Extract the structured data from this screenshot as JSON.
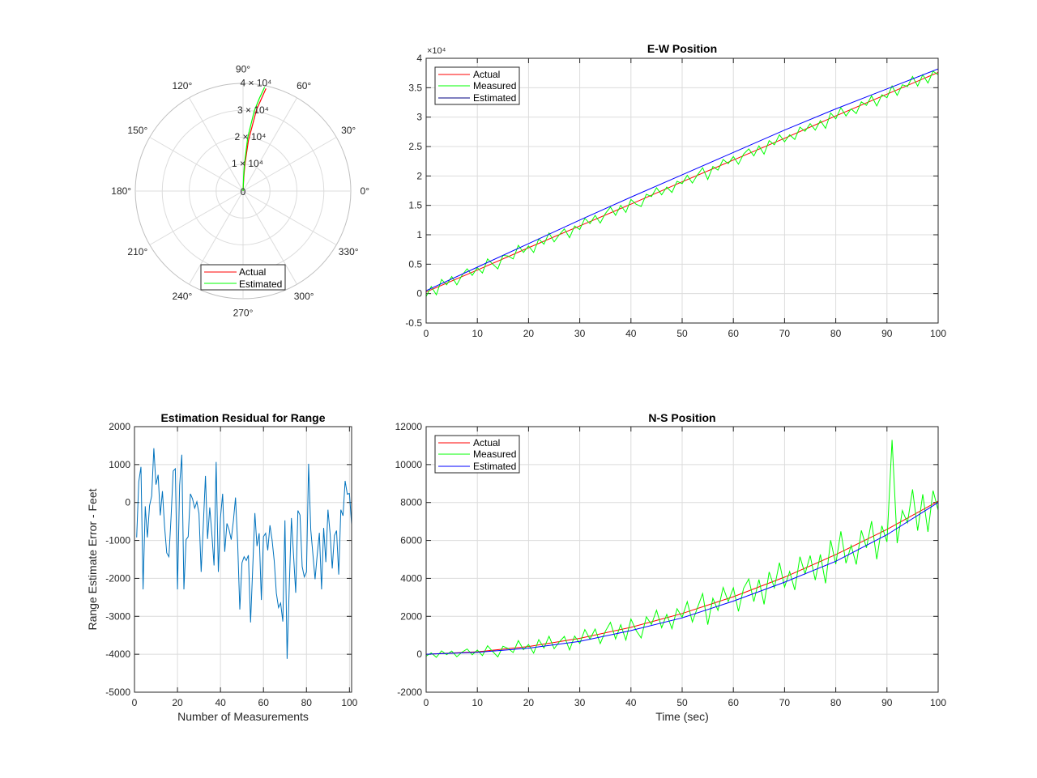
{
  "colors": {
    "actual": "#ff0000",
    "measured": "#00ff00",
    "estimated": "#0000ff",
    "estimated_legend_ew": "#000080",
    "residual": "#0072bd",
    "grid": "#dcdcdc",
    "axis": "#262626"
  },
  "chart_data": [
    {
      "type": "line",
      "subtype": "polar",
      "theta_ticks_deg": [
        0,
        30,
        60,
        90,
        120,
        150,
        180,
        210,
        240,
        270,
        300,
        330
      ],
      "theta_tick_labels": [
        "0°",
        "30°",
        "60°",
        "90°",
        "120°",
        "150°",
        "180°",
        "210°",
        "240°",
        "270°",
        "300°",
        "330°"
      ],
      "r_ticks": [
        0,
        10000,
        20000,
        30000,
        40000
      ],
      "r_tick_labels": [
        "0",
        "1 × 10⁴",
        "2 × 10⁴",
        "3 × 10⁴",
        "4 × 10⁴"
      ],
      "rlim": [
        0,
        40000
      ],
      "grid": true,
      "legend": {
        "placement": "bottom",
        "entries": [
          "Actual",
          "Estimated"
        ]
      },
      "series": [
        {
          "name": "Actual",
          "color": "#ff0000",
          "theta_deg": [
            90,
            87,
            86,
            83.9,
            80.6,
            77.4
          ],
          "r": [
            0,
            5000,
            10000,
            19000,
            30700,
            39000
          ]
        },
        {
          "name": "Estimated",
          "color": "#00ff00",
          "theta_deg": [
            90,
            88,
            87,
            85,
            82,
            80,
            78.3
          ],
          "r": [
            0,
            5000,
            10000,
            20000,
            30100,
            35000,
            39400
          ]
        }
      ]
    },
    {
      "type": "line",
      "title": "E-W Position",
      "xlabel": "",
      "ylabel": "",
      "y_exponent_label": "×10⁴",
      "xlim": [
        0,
        100
      ],
      "ylim": [
        -0.5,
        4
      ],
      "xticks": [
        0,
        10,
        20,
        30,
        40,
        50,
        60,
        70,
        80,
        90,
        100
      ],
      "yticks": [
        -0.5,
        0,
        0.5,
        1,
        1.5,
        2,
        2.5,
        3,
        3.5,
        4
      ],
      "grid": true,
      "legend": {
        "placement": "top-left",
        "entries": [
          "Actual",
          "Measured",
          "Estimated"
        ]
      },
      "series": [
        {
          "name": "Actual",
          "color": "#ff0000",
          "x": [
            0,
            10,
            20,
            30,
            40,
            50,
            60,
            70,
            80,
            90,
            100
          ],
          "y": [
            0.03,
            0.4,
            0.78,
            1.15,
            1.52,
            1.9,
            2.27,
            2.64,
            3.02,
            3.39,
            3.76
          ]
        },
        {
          "name": "Measured",
          "color": "#00ff00",
          "x": "time_sec",
          "y": [
            -0.05,
            0.12,
            -0.02,
            0.24,
            0.15,
            0.29,
            0.15,
            0.31,
            0.42,
            0.31,
            0.44,
            0.35,
            0.59,
            0.5,
            0.42,
            0.65,
            0.64,
            0.59,
            0.82,
            0.7,
            0.81,
            0.7,
            0.93,
            0.84,
            1.03,
            0.88,
            1.0,
            1.1,
            0.95,
            1.15,
            1.09,
            1.28,
            1.19,
            1.33,
            1.2,
            1.36,
            1.47,
            1.33,
            1.5,
            1.38,
            1.6,
            1.52,
            1.48,
            1.69,
            1.65,
            1.8,
            1.68,
            1.81,
            1.72,
            1.91,
            1.87,
            2.01,
            1.88,
            2.02,
            2.14,
            1.94,
            2.16,
            2.1,
            2.28,
            2.21,
            2.33,
            2.2,
            2.37,
            2.46,
            2.34,
            2.51,
            2.37,
            2.6,
            2.53,
            2.7,
            2.58,
            2.7,
            2.62,
            2.83,
            2.76,
            2.89,
            2.78,
            2.94,
            2.81,
            3.07,
            2.97,
            3.16,
            3.02,
            3.14,
            3.06,
            3.26,
            3.2,
            3.36,
            3.19,
            3.38,
            3.33,
            3.53,
            3.37,
            3.55,
            3.52,
            3.69,
            3.53,
            3.72,
            3.58,
            3.78,
            3.72
          ]
        },
        {
          "name": "Estimated",
          "color": "#0000ff",
          "x": [
            0,
            10,
            20,
            30,
            40,
            50,
            60,
            70,
            80,
            90,
            100
          ],
          "y": [
            0.05,
            0.45,
            0.85,
            1.25,
            1.64,
            2.02,
            2.4,
            2.78,
            3.14,
            3.48,
            3.82
          ]
        }
      ]
    },
    {
      "type": "line",
      "title": "Estimation Residual for Range",
      "xlabel": "Number of Measurements",
      "ylabel": "Range Estimate Error - Feet",
      "xlim": [
        0,
        101
      ],
      "ylim": [
        -5000,
        2000
      ],
      "xticks": [
        0,
        20,
        40,
        60,
        80,
        100
      ],
      "yticks": [
        -5000,
        -4000,
        -3000,
        -2000,
        -1000,
        0,
        1000,
        2000
      ],
      "grid": true,
      "series": [
        {
          "color": "#0072bd",
          "x_start": 1,
          "y": [
            -920,
            550,
            940,
            -2290,
            -100,
            -920,
            -80,
            170,
            1430,
            470,
            730,
            -340,
            300,
            -620,
            -1330,
            -1430,
            -410,
            830,
            890,
            -2290,
            450,
            1260,
            -2290,
            -980,
            -900,
            230,
            100,
            -150,
            20,
            -290,
            -1830,
            -620,
            700,
            -960,
            -130,
            -830,
            -1660,
            1070,
            -1830,
            -410,
            230,
            -1300,
            -550,
            -720,
            -980,
            -480,
            130,
            -1110,
            -2820,
            -1590,
            -1430,
            -1530,
            -1390,
            -3160,
            -1750,
            -280,
            -1150,
            -810,
            -2570,
            -900,
            -810,
            -1260,
            -600,
            -980,
            -1540,
            -2390,
            -2770,
            -2650,
            -3140,
            -470,
            -4120,
            -2260,
            -410,
            -1410,
            -2380,
            -210,
            -330,
            -1690,
            -1960,
            -1830,
            1020,
            -720,
            -1360,
            -2020,
            -1390,
            -800,
            -2290,
            -670,
            -1570,
            -190,
            -830,
            -1740,
            -870,
            -740,
            -1900,
            -190,
            -350,
            570,
            220,
            240,
            -580
          ]
        }
      ]
    },
    {
      "type": "line",
      "title": "N-S Position",
      "xlabel": "Time (sec)",
      "ylabel": "",
      "xlim": [
        0,
        100
      ],
      "ylim": [
        -2000,
        12000
      ],
      "xticks": [
        0,
        10,
        20,
        30,
        40,
        50,
        60,
        70,
        80,
        90,
        100
      ],
      "yticks": [
        -2000,
        0,
        2000,
        4000,
        6000,
        8000,
        10000,
        12000
      ],
      "grid": true,
      "legend": {
        "placement": "top-left",
        "entries": [
          "Actual",
          "Measured",
          "Estimated"
        ]
      },
      "series": [
        {
          "name": "Actual",
          "color": "#ff0000",
          "x": [
            0,
            10,
            20,
            30,
            40,
            50,
            60,
            70,
            80,
            90,
            100
          ],
          "y": [
            0,
            128,
            408,
            838,
            1418,
            2150,
            3032,
            4066,
            5250,
            6584,
            8070
          ]
        },
        {
          "name": "Measured",
          "color": "#00ff00",
          "x": "time_sec",
          "y": [
            -100,
            70,
            -160,
            180,
            -20,
            170,
            -130,
            110,
            280,
            -30,
            220,
            -70,
            450,
            140,
            -140,
            420,
            310,
            90,
            720,
            240,
            510,
            60,
            770,
            330,
            950,
            290,
            650,
            940,
            230,
            960,
            570,
            1300,
            800,
            1330,
            560,
            1210,
            1680,
            810,
            1560,
            750,
            1860,
            1260,
            860,
            1980,
            1570,
            2320,
            1400,
            2100,
            1350,
            2400,
            1950,
            2770,
            1700,
            2470,
            3200,
            1560,
            2950,
            2310,
            3520,
            2780,
            3500,
            2260,
            3470,
            3970,
            2770,
            3940,
            2630,
            4340,
            3500,
            4830,
            3540,
            4360,
            3390,
            5140,
            4240,
            5200,
            3910,
            5260,
            3740,
            6010,
            4750,
            6480,
            4800,
            5740,
            4730,
            6530,
            5610,
            7020,
            5010,
            6770,
            5920,
            11300,
            5860,
            7580,
            6930,
            8690,
            6520,
            8430,
            6450,
            8630,
            7590
          ]
        },
        {
          "name": "Estimated",
          "color": "#0000ff",
          "x": [
            0,
            10,
            20,
            30,
            40,
            50,
            60,
            70,
            80,
            90,
            100
          ],
          "y": [
            0,
            100,
            320,
            680,
            1250,
            1920,
            2800,
            3800,
            4900,
            6300,
            8000
          ]
        }
      ]
    }
  ],
  "time_sec": [
    0,
    1,
    2,
    3,
    4,
    5,
    6,
    7,
    8,
    9,
    10,
    11,
    12,
    13,
    14,
    15,
    16,
    17,
    18,
    19,
    20,
    21,
    22,
    23,
    24,
    25,
    26,
    27,
    28,
    29,
    30,
    31,
    32,
    33,
    34,
    35,
    36,
    37,
    38,
    39,
    40,
    41,
    42,
    43,
    44,
    45,
    46,
    47,
    48,
    49,
    50,
    51,
    52,
    53,
    54,
    55,
    56,
    57,
    58,
    59,
    60,
    61,
    62,
    63,
    64,
    65,
    66,
    67,
    68,
    69,
    70,
    71,
    72,
    73,
    74,
    75,
    76,
    77,
    78,
    79,
    80,
    81,
    82,
    83,
    84,
    85,
    86,
    87,
    88,
    89,
    90,
    91,
    92,
    93,
    94,
    95,
    96,
    97,
    98,
    99,
    100
  ]
}
